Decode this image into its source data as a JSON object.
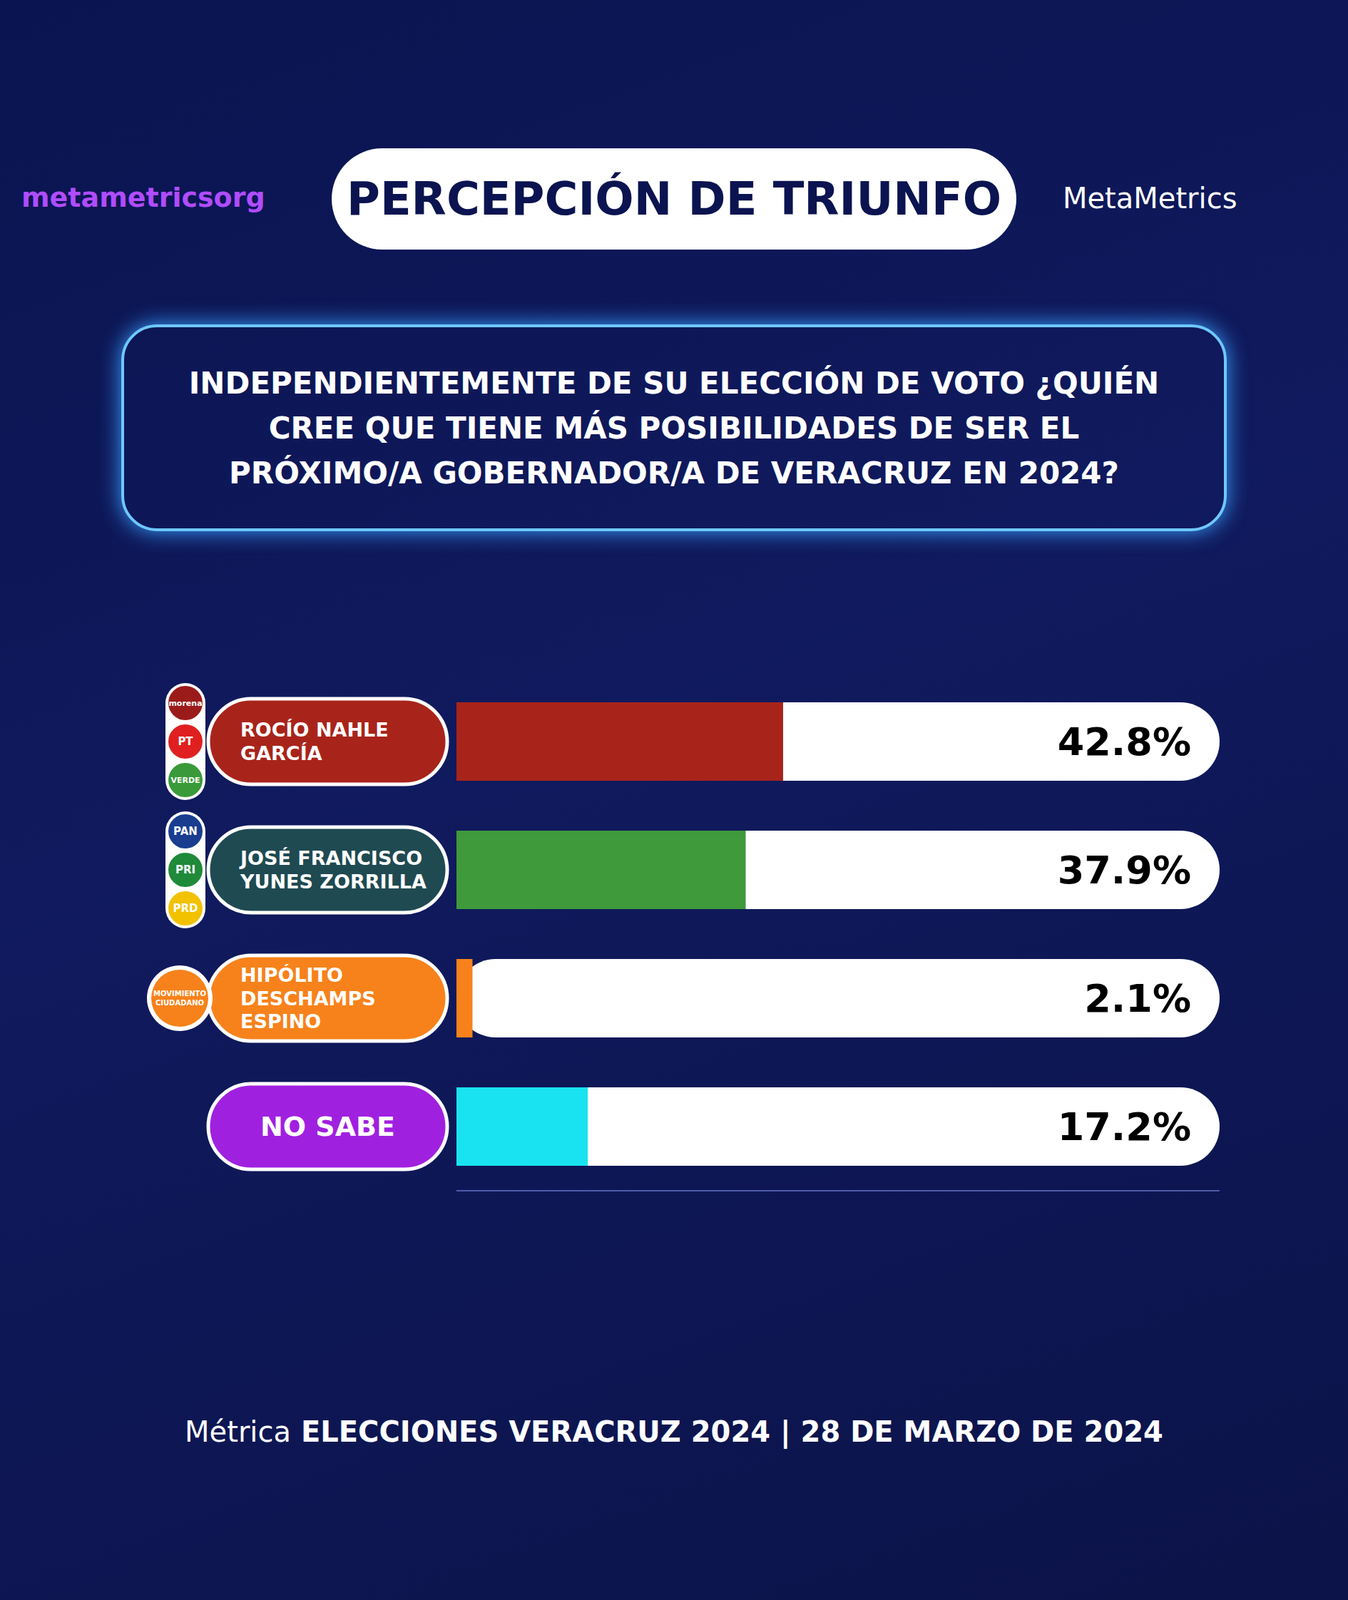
{
  "chart_data": {
    "type": "bar",
    "title": "PERCEPCIÓN DE TRIUNFO",
    "subtitle": "INDEPENDIENTEMENTE DE SU ELECCIÓN DE VOTO ¿QUIÉN CREE QUE TIENE MÁS POSIBILIDADES DE SER EL PRÓXIMO/A GOBERNADOR/A DE VERACRUZ EN 2024?",
    "handle": "metametricsorg",
    "brand": "MetaMetrics",
    "footer": "Métrica ELECCIONES VERACRUZ 2024 | 28 DE MARZO DE 2024",
    "categories": [
      "ROCÍO NAHLE GARCÍA",
      "JOSÉ FRANCISCO YUNES ZORRILLA",
      "HIPÓLITO DESCHAMPS ESPINO",
      "NO SABE"
    ],
    "parties": [
      [
        "morena",
        "PT",
        "VERDE"
      ],
      [
        "PAN",
        "PRI",
        "PRD"
      ],
      [
        "MOVIMIENTO CIUDADANO"
      ],
      null
    ],
    "values": [
      42.8,
      37.9,
      2.1,
      17.2
    ],
    "value_labels": [
      "42.8%",
      "37.9%",
      "2.1%",
      "17.2%"
    ],
    "colors": [
      "#a8241a",
      "#3f9a3c",
      "#f7821b",
      "#19e3f0"
    ],
    "orientation": "horizontal",
    "data_labels": true,
    "tick_labels": false,
    "grid": false,
    "xlim": [
      0,
      100
    ]
  }
}
